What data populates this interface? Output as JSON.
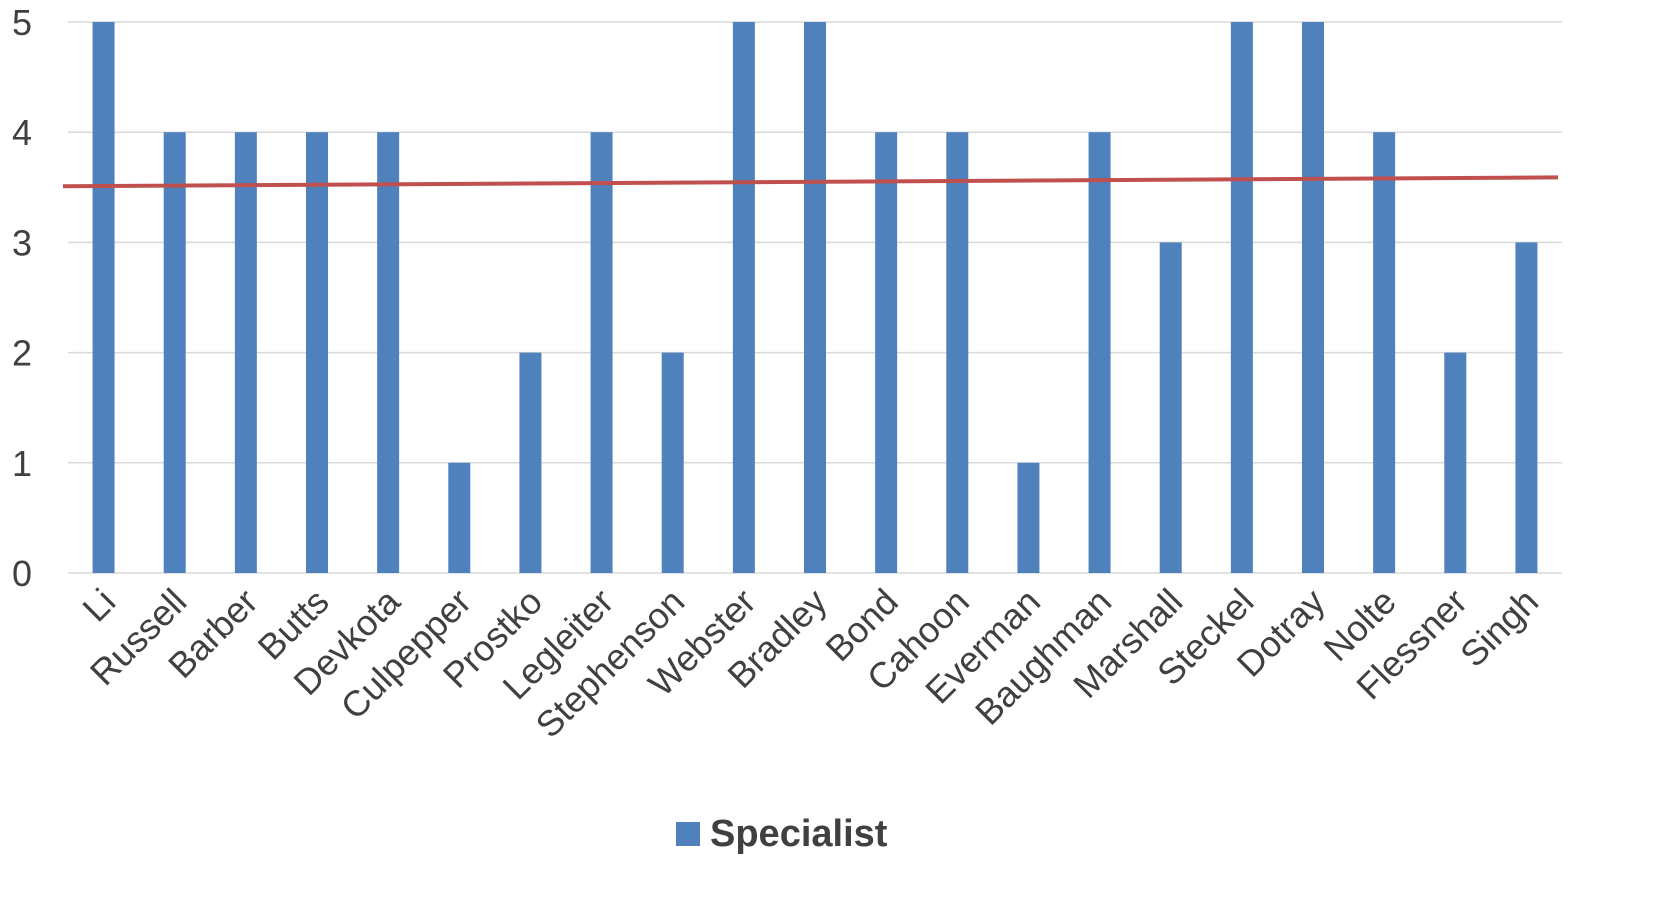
{
  "chart_data": {
    "type": "bar",
    "categories": [
      "Li",
      "Russell",
      "Barber",
      "Butts",
      "Devkota",
      "Culpepper",
      "Prostko",
      "Legleiter",
      "Stephenson",
      "Webster",
      "Bradley",
      "Bond",
      "Cahoon",
      "Everman",
      "Baughman",
      "Marshall",
      "Steckel",
      "Dotray",
      "Nolte",
      "Flessner",
      "Singh"
    ],
    "series": [
      {
        "name": "Specialist",
        "values": [
          5,
          4,
          4,
          4,
          4,
          1,
          2,
          4,
          2,
          5,
          5,
          4,
          4,
          1,
          4,
          3,
          5,
          5,
          4,
          2,
          3
        ],
        "color": "#4f81bd"
      }
    ],
    "trendline": {
      "type": "linear",
      "start": 3.51,
      "end": 3.59,
      "color": "#c0504d"
    },
    "ylim": [
      0,
      5
    ],
    "yticks": [
      "0",
      "1",
      "2",
      "3",
      "4",
      "5"
    ],
    "grid": true,
    "legend_position": "bottom"
  }
}
